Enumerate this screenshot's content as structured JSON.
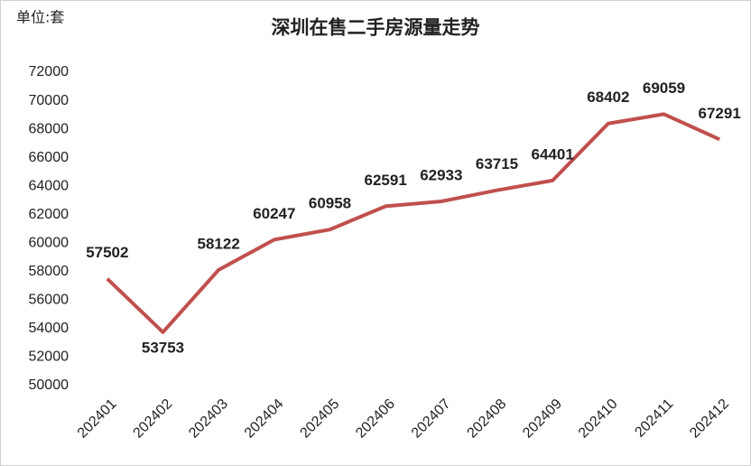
{
  "chart_data": {
    "type": "line",
    "title": "深圳在售二手房源量走势",
    "unit_label": "单位:套",
    "categories": [
      "202401",
      "202402",
      "202403",
      "202404",
      "202405",
      "202406",
      "202407",
      "202408",
      "202409",
      "202410",
      "202411",
      "202412"
    ],
    "values": [
      57502,
      53753,
      58122,
      60247,
      60958,
      62591,
      62933,
      63715,
      64401,
      68402,
      69059,
      67291
    ],
    "color": "#c0504d",
    "ylim": [
      50000,
      72000
    ],
    "yticks": [
      50000,
      52000,
      54000,
      56000,
      58000,
      60000,
      62000,
      64000,
      66000,
      68000,
      70000,
      72000
    ],
    "grid": false
  }
}
